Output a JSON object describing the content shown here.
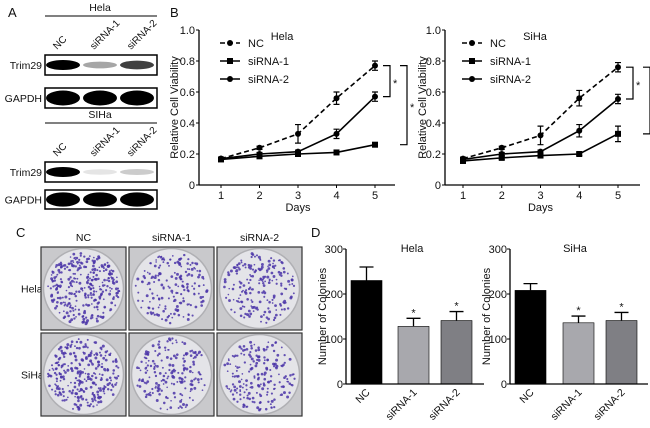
{
  "panel_labels": {
    "a": "A",
    "b": "B",
    "c": "C",
    "d": "D"
  },
  "panel_a": {
    "groups": [
      {
        "cell_line": "Hela",
        "lanes": [
          "NC",
          "siRNA-1",
          "siRNA-2"
        ],
        "blots": [
          {
            "label": "Trim29",
            "intensity": [
              1.0,
              0.35,
              0.75
            ]
          },
          {
            "label": "GAPDH",
            "intensity": [
              1.0,
              1.0,
              1.0
            ]
          }
        ]
      },
      {
        "cell_line": "SIHa",
        "lanes": [
          "NC",
          "siRNA-1",
          "siRNA-2"
        ],
        "blots": [
          {
            "label": "Trim29",
            "intensity": [
              1.0,
              0.1,
              0.2
            ]
          },
          {
            "label": "GAPDH",
            "intensity": [
              1.0,
              1.0,
              1.0
            ]
          }
        ]
      }
    ]
  },
  "panel_c": {
    "columns": [
      "NC",
      "siRNA-1",
      "siRNA-2"
    ],
    "rows": [
      "Hela",
      "SiHa"
    ]
  },
  "chart_data": [
    {
      "type": "line",
      "title": "Hela",
      "xlabel": "Days",
      "ylabel": "Relative Cell Viability",
      "x": [
        1,
        2,
        3,
        4,
        5
      ],
      "xticks": [
        "1",
        "2",
        "3",
        "4",
        "5"
      ],
      "ylim": [
        0,
        1.0
      ],
      "yticks": [
        "0",
        "0.2",
        "0.4",
        "0.6",
        "0.8",
        "1.0"
      ],
      "legend": "top-left",
      "series": [
        {
          "name": "NC",
          "style": "dashed",
          "marker": "circle",
          "values": [
            0.17,
            0.24,
            0.33,
            0.56,
            0.77
          ],
          "errors": [
            0.01,
            0.01,
            0.06,
            0.04,
            0.03
          ]
        },
        {
          "name": "siRNA-1",
          "style": "solid",
          "marker": "square",
          "values": [
            0.165,
            0.185,
            0.2,
            0.21,
            0.26
          ],
          "errors": [
            0.01,
            0.01,
            0.01,
            0.01,
            0.01
          ]
        },
        {
          "name": "siRNA-2",
          "style": "solid",
          "marker": "circle",
          "values": [
            0.17,
            0.2,
            0.215,
            0.33,
            0.57
          ],
          "errors": [
            0.01,
            0.01,
            0.01,
            0.03,
            0.03
          ]
        }
      ],
      "significance": [
        {
          "from": 0.77,
          "to": 0.57,
          "label": "*"
        },
        {
          "from": 0.77,
          "to": 0.26,
          "label": "*"
        }
      ]
    },
    {
      "type": "line",
      "title": "SiHa",
      "xlabel": "Days",
      "ylabel": "Relative Cell Viability",
      "x": [
        1,
        2,
        3,
        4,
        5
      ],
      "xticks": [
        "1",
        "2",
        "3",
        "4",
        "5"
      ],
      "ylim": [
        0,
        1.0
      ],
      "yticks": [
        "0",
        "0.2",
        "0.4",
        "0.6",
        "0.8",
        "1.0"
      ],
      "legend": "top-left",
      "series": [
        {
          "name": "NC",
          "style": "dashed",
          "marker": "circle",
          "values": [
            0.17,
            0.24,
            0.32,
            0.56,
            0.76
          ],
          "errors": [
            0.01,
            0.01,
            0.06,
            0.05,
            0.03
          ]
        },
        {
          "name": "siRNA-1",
          "style": "solid",
          "marker": "square",
          "values": [
            0.155,
            0.175,
            0.19,
            0.2,
            0.33
          ],
          "errors": [
            0.01,
            0.01,
            0.01,
            0.01,
            0.05
          ]
        },
        {
          "name": "siRNA-2",
          "style": "solid",
          "marker": "circle",
          "values": [
            0.165,
            0.2,
            0.215,
            0.35,
            0.555
          ],
          "errors": [
            0.01,
            0.01,
            0.01,
            0.04,
            0.03
          ]
        }
      ],
      "significance": [
        {
          "from": 0.76,
          "to": 0.555,
          "label": "*"
        },
        {
          "from": 0.76,
          "to": 0.33,
          "label": "*"
        }
      ]
    },
    {
      "type": "bar",
      "title": "Hela",
      "ylabel": "Number of Colonies",
      "categories": [
        "NC",
        "siRNA-1",
        "siRNA-2"
      ],
      "values": [
        230,
        128,
        141
      ],
      "errors": [
        30,
        18,
        20
      ],
      "colors": [
        "#000000",
        "#a8a8ad",
        "#7f7f84"
      ],
      "annotations": [
        "",
        "*",
        "*"
      ],
      "ylim": [
        0,
        300
      ],
      "yticks": [
        "0",
        "100",
        "200",
        "300"
      ]
    },
    {
      "type": "bar",
      "title": "SiHa",
      "ylabel": "Number of Colonies",
      "categories": [
        "NC",
        "siRNA-1",
        "siRNA-2"
      ],
      "values": [
        208,
        136,
        141
      ],
      "errors": [
        15,
        15,
        18
      ],
      "colors": [
        "#000000",
        "#a8a8ad",
        "#7f7f84"
      ],
      "annotations": [
        "",
        "*",
        "*"
      ],
      "ylim": [
        0,
        300
      ],
      "yticks": [
        "0",
        "100",
        "200",
        "300"
      ]
    }
  ]
}
